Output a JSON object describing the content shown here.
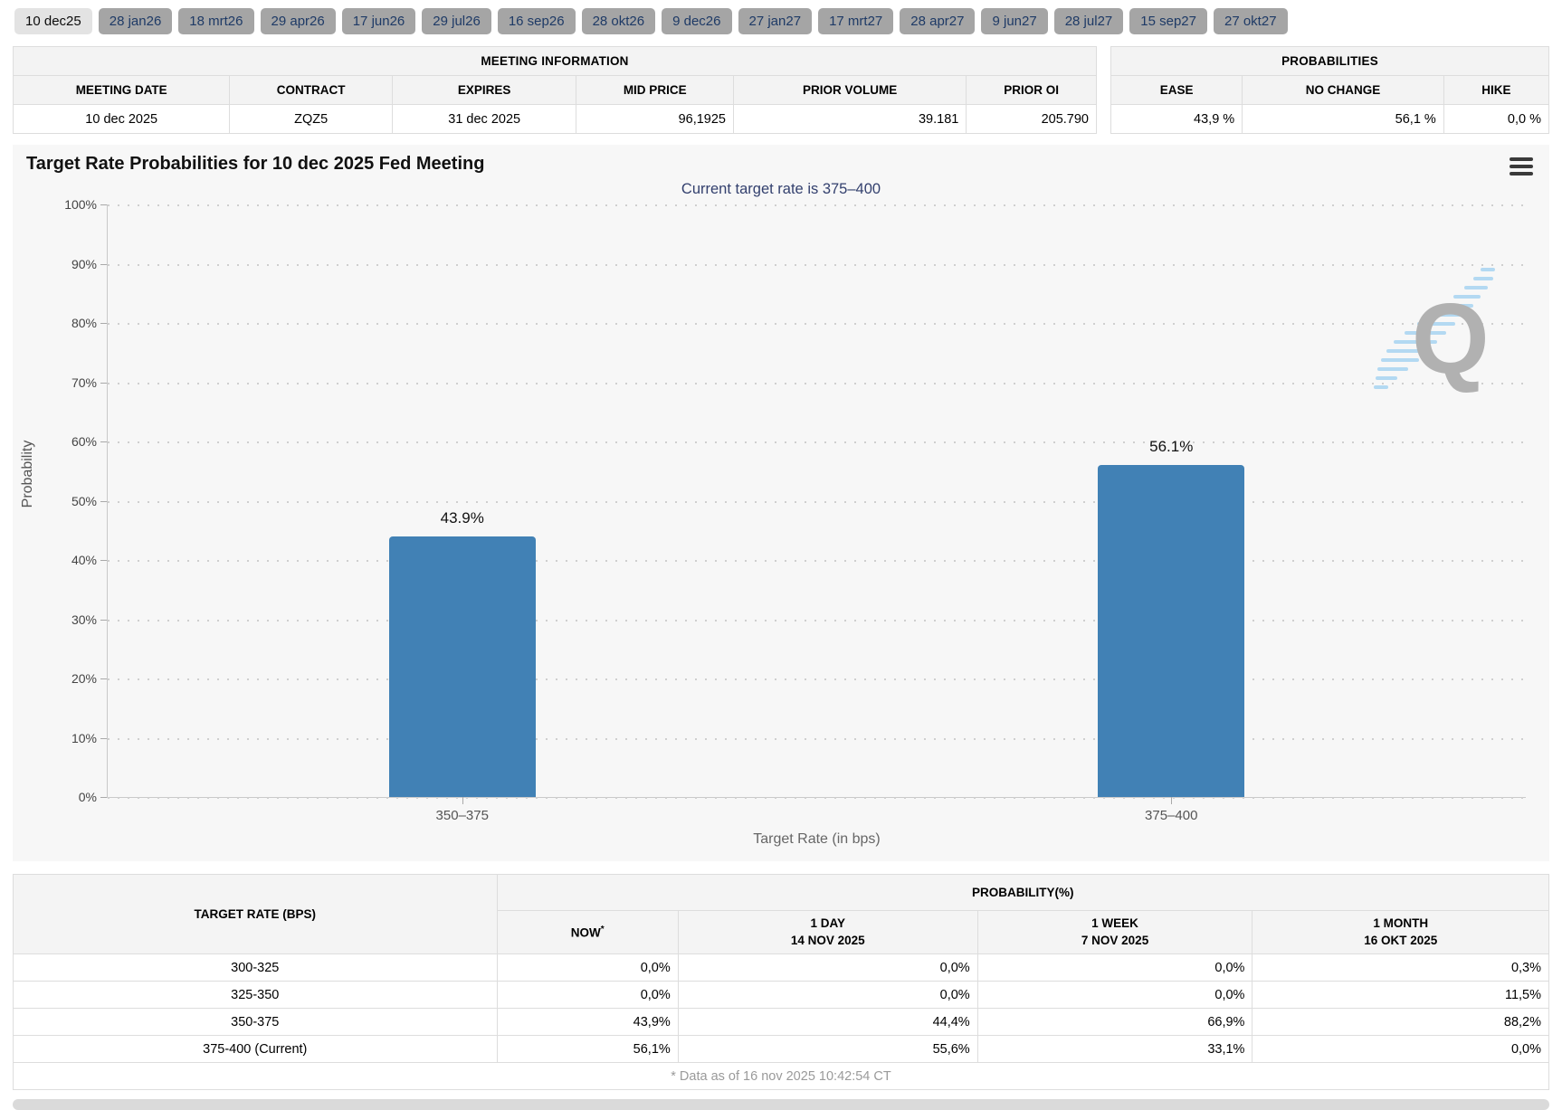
{
  "tabs": {
    "items": [
      {
        "label": "10 dec25",
        "selected": true
      },
      {
        "label": "28 jan26",
        "selected": false
      },
      {
        "label": "18 mrt26",
        "selected": false
      },
      {
        "label": "29 apr26",
        "selected": false
      },
      {
        "label": "17 jun26",
        "selected": false
      },
      {
        "label": "29 jul26",
        "selected": false
      },
      {
        "label": "16 sep26",
        "selected": false
      },
      {
        "label": "28 okt26",
        "selected": false
      },
      {
        "label": "9 dec26",
        "selected": false
      },
      {
        "label": "27 jan27",
        "selected": false
      },
      {
        "label": "17 mrt27",
        "selected": false
      },
      {
        "label": "28 apr27",
        "selected": false
      },
      {
        "label": "9 jun27",
        "selected": false
      },
      {
        "label": "28 jul27",
        "selected": false
      },
      {
        "label": "15 sep27",
        "selected": false
      },
      {
        "label": "27 okt27",
        "selected": false
      }
    ]
  },
  "meeting_info": {
    "title": "MEETING INFORMATION",
    "columns": [
      "MEETING DATE",
      "CONTRACT",
      "EXPIRES",
      "MID PRICE",
      "PRIOR VOLUME",
      "PRIOR OI"
    ],
    "values": [
      "10 dec 2025",
      "ZQZ5",
      "31 dec 2025",
      "96,1925",
      "39.181",
      "205.790"
    ]
  },
  "probabilities_summary": {
    "title": "PROBABILITIES",
    "columns": [
      "EASE",
      "NO CHANGE",
      "HIKE"
    ],
    "values": [
      "43,9 %",
      "56,1 %",
      "0,0 %"
    ]
  },
  "chart_data": {
    "type": "bar",
    "title": "Target Rate Probabilities for 10 dec 2025 Fed Meeting",
    "subtitle": "Current target rate is 375–400",
    "categories": [
      "350–375",
      "375–400"
    ],
    "values": [
      43.9,
      56.1
    ],
    "bar_labels": [
      "43.9%",
      "56.1%"
    ],
    "xlabel": "Target Rate (in bps)",
    "ylabel": "Probability",
    "ylim": [
      0,
      100
    ],
    "ytick_step": 10,
    "yticks": [
      "100%",
      "90%",
      "80%",
      "70%",
      "60%",
      "50%",
      "40%",
      "30%",
      "20%",
      "10%",
      "0%"
    ],
    "grid": "dotted-horizontal",
    "legend": "none",
    "bar_color": "#4181b5",
    "watermark": "Q"
  },
  "probability_table": {
    "rate_header": "TARGET RATE (BPS)",
    "group_header": "PROBABILITY(%)",
    "col_headers": [
      {
        "line1": "NOW",
        "sup": "*",
        "line2": ""
      },
      {
        "line1": "1 DAY",
        "line2": "14 NOV 2025"
      },
      {
        "line1": "1 WEEK",
        "line2": "7 NOV 2025"
      },
      {
        "line1": "1 MONTH",
        "line2": "16 OKT 2025"
      }
    ],
    "rows": [
      {
        "rate": "300-325",
        "now": "0,0%",
        "day": "0,0%",
        "week": "0,0%",
        "month": "0,3%"
      },
      {
        "rate": "325-350",
        "now": "0,0%",
        "day": "0,0%",
        "week": "0,0%",
        "month": "11,5%"
      },
      {
        "rate": "350-375",
        "now": "43,9%",
        "day": "44,4%",
        "week": "66,9%",
        "month": "88,2%"
      },
      {
        "rate": "375-400 (Current)",
        "now": "56,1%",
        "day": "55,6%",
        "week": "33,1%",
        "month": "0,0%"
      }
    ],
    "footnote": "* Data as of 16 nov 2025 10:42:54 CT"
  },
  "colors": {
    "bar": "#4181b5",
    "now_highlight": "#f8f8da",
    "subtitle_text": "#33406e",
    "tab_selected_bg": "#e3e3e3",
    "tab_bg": "#a5a5a5",
    "tab_text": "#1e3a66",
    "chart_bg": "#f7f7f7"
  }
}
